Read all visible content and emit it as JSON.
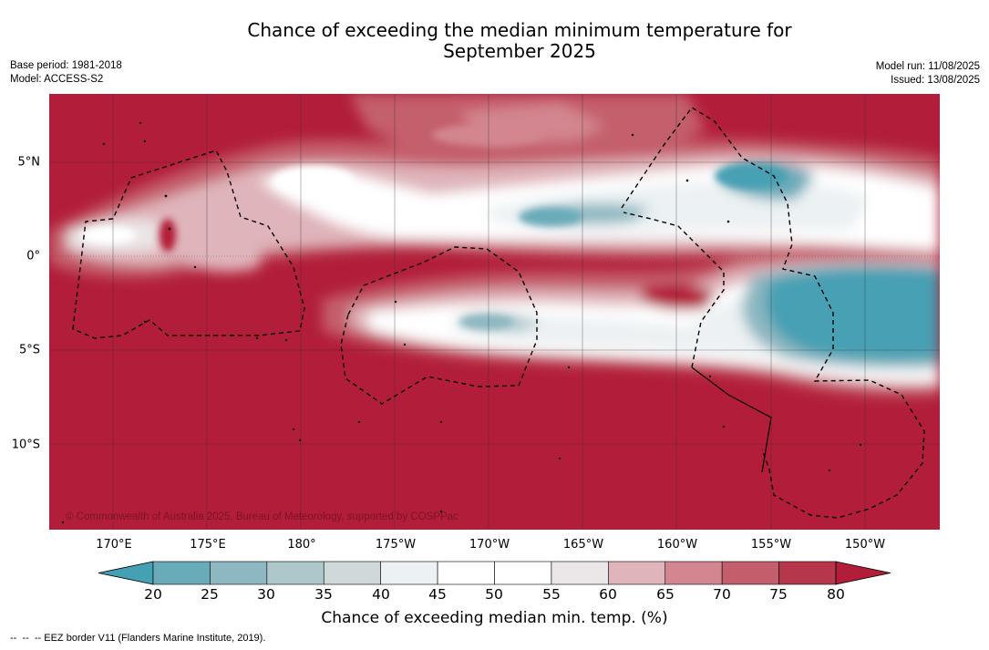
{
  "title": {
    "line1": "Chance of exceeding the median minimum temperature for",
    "line2": "September 2025"
  },
  "meta": {
    "base_period": "Base period: 1981-2018",
    "model": "Model: ACCESS-S2",
    "model_run": "Model run: 11/08/2025",
    "issued": "Issued: 13/08/2025"
  },
  "map": {
    "copyright": "© Commonwealth of Australia 2025, Bureau of Meteorology, supported by COSPPac",
    "lon_labels": [
      "170°E",
      "175°E",
      "180°",
      "175°W",
      "170°W",
      "165°W",
      "160°W",
      "155°W",
      "150°W"
    ],
    "lat_labels": [
      "5°N",
      "0°",
      "5°S",
      "10°S"
    ]
  },
  "colorbar": {
    "ticks": [
      "20",
      "25",
      "30",
      "35",
      "40",
      "45",
      "50",
      "55",
      "60",
      "65",
      "70",
      "75",
      "80"
    ],
    "label": "Chance of exceeding median min. temp. (%)",
    "colors": [
      "#46a0b3",
      "#6aabb9",
      "#8db7c1",
      "#adc7cb",
      "#cfd9da",
      "#ecf1f3",
      "#ffffff",
      "#ffffff",
      "#ebe6e7",
      "#dfb4ba",
      "#d3868f",
      "#c45e6c",
      "#b6374c",
      "#b21e39"
    ]
  },
  "footer": {
    "legend": "--  --  -- EEZ border V11 (Flanders Marine Institute, 2019)."
  }
}
